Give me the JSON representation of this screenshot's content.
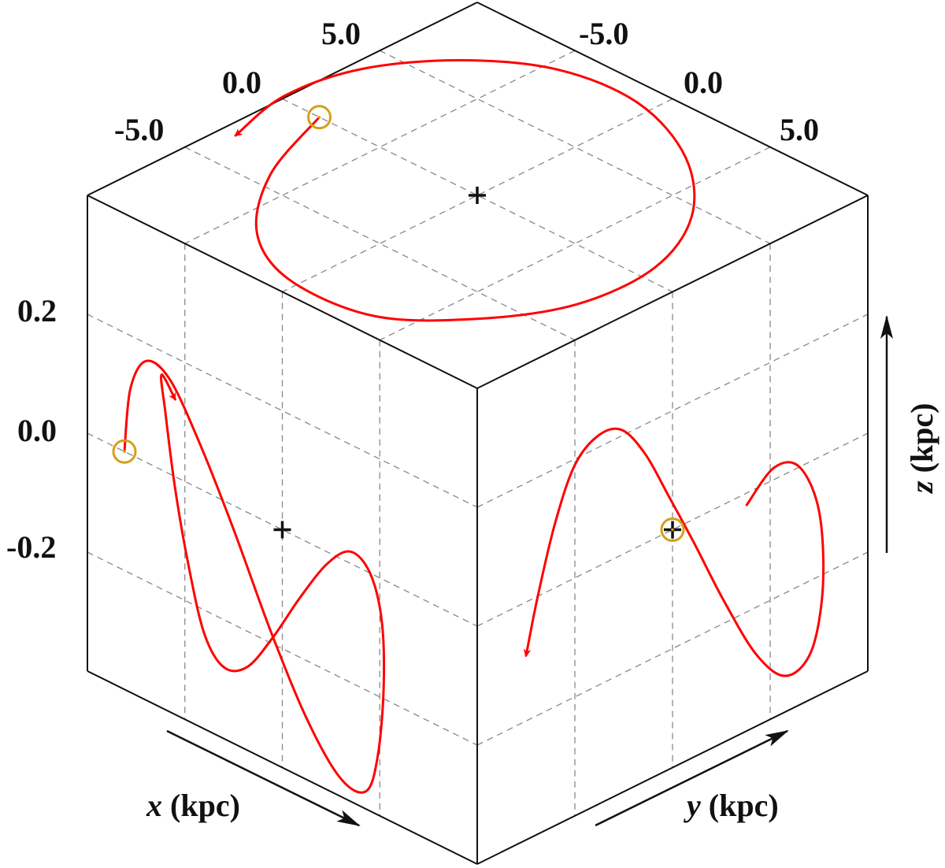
{
  "chart_data": {
    "type": "line",
    "projection": "isometric cube (orbit projected onto three faces)",
    "colors": {
      "orbit": "#ff0000",
      "sun_marker": "#d4a017",
      "center_marker": "#111111",
      "grid": "#888888",
      "frame": "#111111"
    },
    "axes": {
      "x": {
        "label_var": "x",
        "label_unit": "(kpc)",
        "ticks": [
          "-5.0",
          "0.0",
          "5.0"
        ],
        "range": [
          -10,
          10
        ]
      },
      "y": {
        "label_var": "y",
        "label_unit": "(kpc)",
        "ticks": [
          "-5.0",
          "0.0",
          "5.0"
        ],
        "range": [
          -10,
          10
        ]
      },
      "z": {
        "label_var": "z",
        "label_unit": "(kpc)",
        "ticks": [
          "0.2",
          "0.0",
          "-0.2"
        ],
        "range": [
          -0.4,
          0.4
        ]
      }
    },
    "grid": true,
    "center_marker": "+",
    "sun_position_kpc": {
      "x": -8.1,
      "y": 0.0,
      "z": 0.0
    },
    "panels": [
      {
        "name": "x-y plane (top face)",
        "start_kpc": [
          -8.1,
          0.0
        ],
        "orbit_kpc": {
          "x": [
            -8.1,
            -6.4,
            -3.7,
            -0.4,
            3.6,
            6.4,
            8.2,
            8.3,
            6.6,
            3.4,
            -0.6,
            -4.4,
            -7.4,
            -9.5,
            -10.1,
            -9.3
          ],
          "y": [
            0.0,
            4.2,
            7.6,
            9.2,
            8.9,
            6.4,
            3.1,
            -0.8,
            -4.4,
            -7.3,
            -8.9,
            -8.6,
            -6.6,
            -3.6,
            -0.2,
            3.1
          ]
        }
      },
      {
        "name": "x-z plane (left face)",
        "start_kpc": [
          -8.1,
          0.0
        ],
        "orbit_kpc": {
          "x": [
            -8.1,
            -7.8,
            -7.0,
            -5.8,
            -4.3,
            -2.5,
            -0.6,
            1.3,
            3.0,
            4.3,
            4.9,
            5.2,
            5.1,
            4.5,
            3.5,
            2.3,
            0.9,
            -0.5,
            -1.8,
            -3.0,
            -4.0,
            -4.8,
            -5.5,
            -6.0,
            -6.2,
            -5.5
          ],
          "z": [
            0.0,
            0.11,
            0.17,
            0.16,
            0.08,
            -0.04,
            -0.18,
            -0.3,
            -0.37,
            -0.37,
            -0.3,
            -0.18,
            -0.07,
            0.0,
            0.02,
            -0.02,
            -0.1,
            -0.19,
            -0.26,
            -0.28,
            -0.24,
            -0.14,
            -0.02,
            0.1,
            0.16,
            0.13
          ]
        }
      },
      {
        "name": "y-z plane (right face)",
        "start_kpc": [
          0.0,
          0.0
        ],
        "orbit_kpc": {
          "y": [
            -3.8,
            -5.2,
            -6.5,
            -7.5,
            -7.7,
            -7.1,
            -5.8,
            -4.3,
            -2.6,
            -1.1,
            0.2,
            1.4,
            2.6,
            3.8,
            5.0,
            6.0,
            6.9,
            7.5
          ],
          "z": [
            -0.02,
            0.02,
            0.0,
            -0.09,
            -0.22,
            -0.32,
            -0.34,
            -0.28,
            -0.16,
            -0.04,
            0.06,
            0.15,
            0.21,
            0.22,
            0.19,
            0.11,
            0.0,
            -0.09
          ]
        }
      }
    ]
  }
}
